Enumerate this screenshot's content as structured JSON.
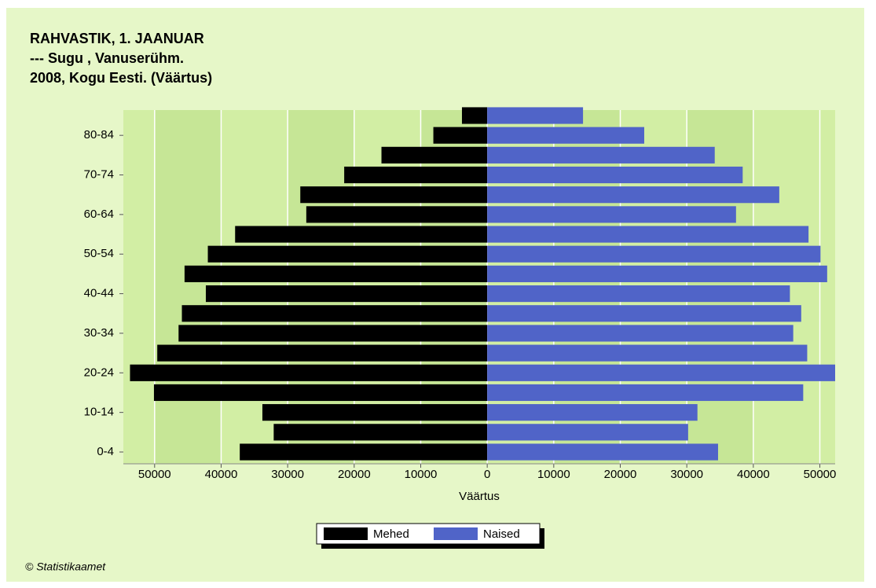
{
  "chart_data": {
    "type": "bar",
    "orientation": "horizontal",
    "title_lines": [
      "RAHVASTIK, 1. JAANUAR",
      "--- Sugu , Vanuserühm.",
      "2008, Kogu Eesti. (Väärtus)"
    ],
    "x_label": "Väärtus",
    "categories": [
      "0-4",
      null,
      "10-14",
      null,
      "20-24",
      null,
      "30-34",
      null,
      "40-44",
      null,
      "50-54",
      null,
      "60-64",
      null,
      "70-74",
      null,
      "80-84",
      null
    ],
    "series": [
      {
        "name": "Mehed",
        "color": "#000000",
        "values": [
          -37200,
          -32100,
          -33800,
          -50100,
          -53700,
          -49600,
          -46400,
          -45900,
          -42300,
          -45500,
          -42000,
          -37900,
          -27200,
          -28100,
          -21500,
          -15900,
          -8100,
          -3800
        ]
      },
      {
        "name": "Naised",
        "color": "#5064c8",
        "values": [
          34700,
          30200,
          31600,
          47500,
          52300,
          48100,
          46000,
          47200,
          45500,
          51100,
          50100,
          48300,
          37400,
          43900,
          38400,
          34200,
          23600,
          14400
        ]
      }
    ],
    "xlim": [
      -54700,
      52300
    ],
    "xticks": [
      {
        "value": -50000,
        "label": "50000"
      },
      {
        "value": -40000,
        "label": "40000"
      },
      {
        "value": -30000,
        "label": "30000"
      },
      {
        "value": -20000,
        "label": "20000"
      },
      {
        "value": -10000,
        "label": "10000"
      },
      0,
      10000,
      20000,
      30000,
      40000,
      50000
    ],
    "grid": true,
    "legend": "bottom",
    "footer": "© Statistikaamet"
  }
}
